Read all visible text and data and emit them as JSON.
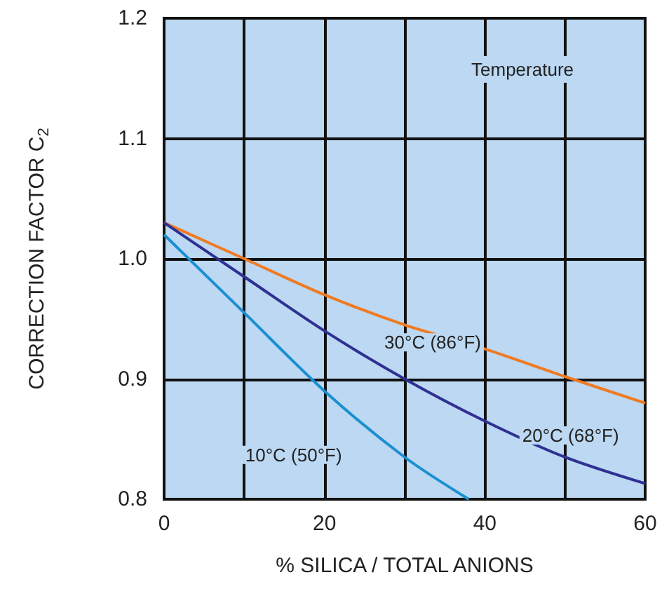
{
  "chart_data": {
    "type": "line",
    "xlabel": "% SILICA / TOTAL ANIONS",
    "ylabel": "CORRECTION FACTOR C$_{2}$",
    "x": [
      0,
      10,
      20,
      30,
      40,
      50,
      60
    ],
    "series": [
      {
        "name": "30°C (86°F)",
        "color": "#f07a22",
        "values": [
          1.03,
          1.0,
          0.97,
          0.945,
          0.925,
          0.902,
          0.88
        ]
      },
      {
        "name": "20°C (68°F)",
        "color": "#2e3192",
        "values": [
          1.03,
          0.985,
          0.94,
          0.9,
          0.865,
          0.835,
          0.813
        ]
      },
      {
        "name": "10°C (50°F)",
        "color": "#1b8fd2",
        "x": [
          0,
          10,
          20,
          30,
          38
        ],
        "values": [
          1.02,
          0.955,
          0.89,
          0.835,
          0.8
        ]
      }
    ],
    "xlim": [
      0,
      60
    ],
    "xticks": [
      0,
      20,
      40,
      60
    ],
    "ylim": [
      0.8,
      1.2
    ],
    "yticks": [
      0.8,
      0.9,
      {
        "value": 1,
        "label": "1.0"
      },
      1.1,
      1.2
    ],
    "grid": true,
    "legend": false,
    "marker": "none",
    "line_style": "solid",
    "annotations": [
      "Temperature"
    ]
  }
}
